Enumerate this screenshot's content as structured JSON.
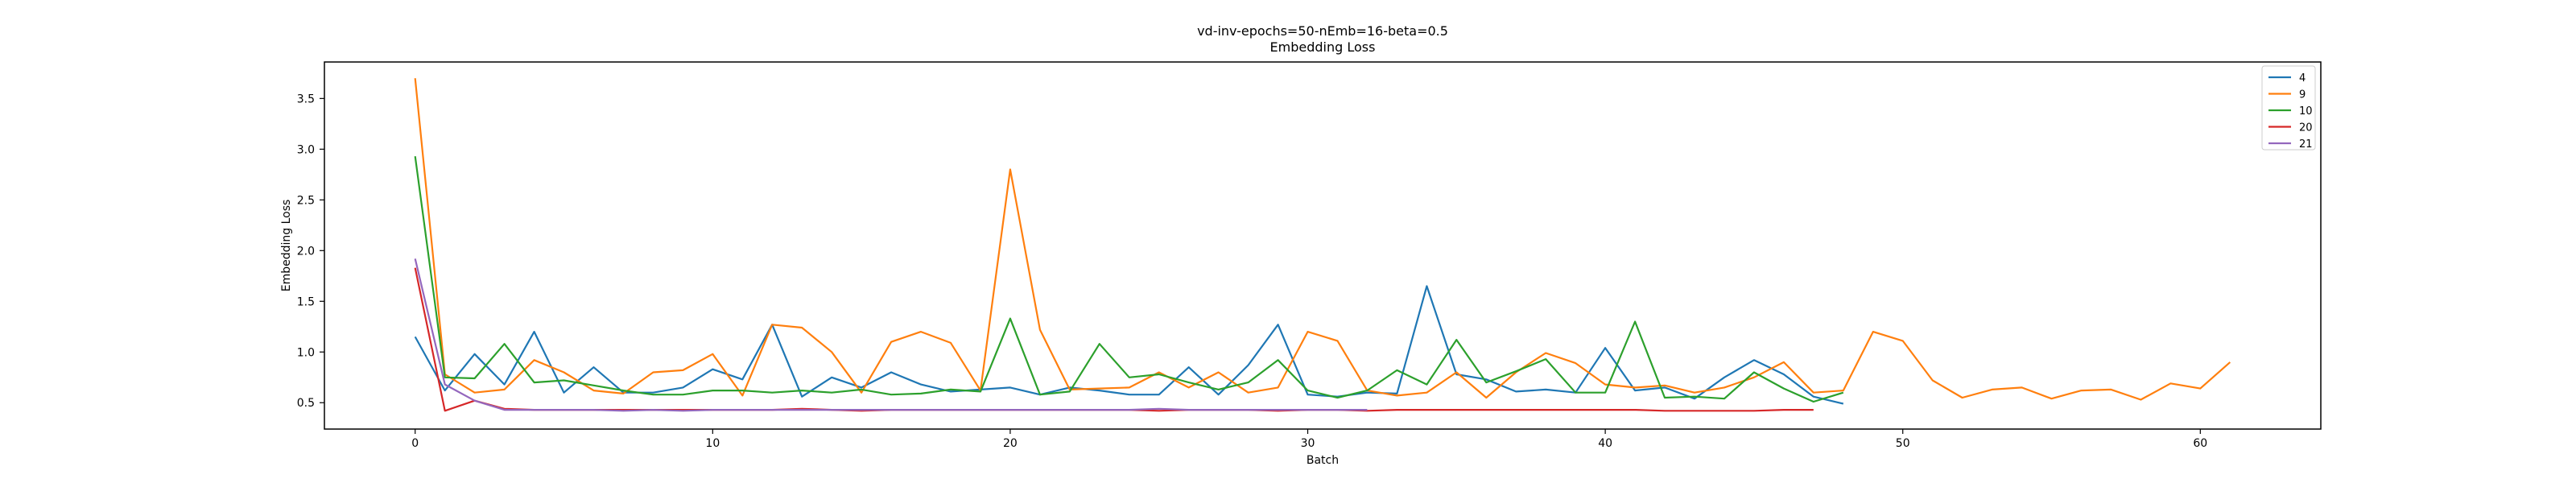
{
  "chart_data": {
    "type": "line",
    "title": "vd-inv-epochs=50-nEmb=16-beta=0.5",
    "subtitle": "Embedding Loss",
    "xlabel": "Batch",
    "ylabel": "Embedding Loss",
    "xlim": [
      -3.05,
      64.05
    ],
    "ylim": [
      0.24,
      3.86
    ],
    "xticks": [
      0,
      10,
      20,
      30,
      40,
      50,
      60
    ],
    "yticks": [
      0.5,
      1.0,
      1.5,
      2.0,
      2.5,
      3.0,
      3.5
    ],
    "ytick_labels": [
      "0.5",
      "1.0",
      "1.5",
      "2.0",
      "2.5",
      "3.0",
      "3.5"
    ],
    "grid": false,
    "legend_position": "top-right",
    "series": [
      {
        "name": "4",
        "color": "#1f77b4",
        "values": [
          1.15,
          0.62,
          0.98,
          0.68,
          1.2,
          0.6,
          0.85,
          0.6,
          0.6,
          0.65,
          0.83,
          0.73,
          1.27,
          0.56,
          0.75,
          0.65,
          0.8,
          0.68,
          0.61,
          0.63,
          0.65,
          0.58,
          0.65,
          0.62,
          0.58,
          0.58,
          0.85,
          0.58,
          0.87,
          1.27,
          0.58,
          0.56,
          0.6,
          0.59,
          1.65,
          0.78,
          0.73,
          0.61,
          0.63,
          0.6,
          1.04,
          0.62,
          0.65,
          0.54,
          0.75,
          0.92,
          0.78,
          0.56,
          0.49
        ]
      },
      {
        "name": "9",
        "color": "#ff7f0e",
        "values": [
          3.7,
          0.78,
          0.6,
          0.63,
          0.92,
          0.8,
          0.62,
          0.59,
          0.8,
          0.82,
          0.98,
          0.57,
          1.27,
          1.24,
          1.0,
          0.6,
          1.1,
          1.2,
          1.09,
          0.62,
          2.8,
          1.22,
          0.63,
          0.64,
          0.65,
          0.8,
          0.65,
          0.8,
          0.6,
          0.65,
          1.2,
          1.11,
          0.62,
          0.57,
          0.6,
          0.8,
          0.55,
          0.8,
          0.99,
          0.89,
          0.68,
          0.65,
          0.67,
          0.6,
          0.65,
          0.75,
          0.9,
          0.6,
          0.62,
          1.2,
          1.11,
          0.72,
          0.55,
          0.63,
          0.65,
          0.54,
          0.62,
          0.63,
          0.53,
          0.69,
          0.64,
          0.9
        ]
      },
      {
        "name": "10",
        "color": "#2ca02c",
        "values": [
          2.93,
          0.75,
          0.74,
          1.08,
          0.7,
          0.72,
          0.67,
          0.62,
          0.58,
          0.58,
          0.62,
          0.62,
          0.6,
          0.62,
          0.6,
          0.63,
          0.58,
          0.59,
          0.63,
          0.61,
          1.33,
          0.58,
          0.61,
          1.08,
          0.75,
          0.78,
          0.7,
          0.63,
          0.7,
          0.92,
          0.62,
          0.55,
          0.62,
          0.82,
          0.68,
          1.12,
          0.7,
          0.81,
          0.93,
          0.6,
          0.6,
          1.3,
          0.55,
          0.56,
          0.54,
          0.8,
          0.64,
          0.51,
          0.6
        ]
      },
      {
        "name": "20",
        "color": "#d62728",
        "values": [
          1.83,
          0.42,
          0.52,
          0.44,
          0.43,
          0.43,
          0.43,
          0.43,
          0.43,
          0.43,
          0.43,
          0.43,
          0.43,
          0.44,
          0.43,
          0.42,
          0.43,
          0.43,
          0.43,
          0.43,
          0.43,
          0.43,
          0.43,
          0.43,
          0.43,
          0.42,
          0.43,
          0.43,
          0.43,
          0.42,
          0.43,
          0.43,
          0.42,
          0.43,
          0.43,
          0.43,
          0.43,
          0.43,
          0.43,
          0.43,
          0.43,
          0.43,
          0.42,
          0.42,
          0.42,
          0.42,
          0.43,
          0.43
        ]
      },
      {
        "name": "21",
        "color": "#9467bd",
        "values": [
          1.92,
          0.68,
          0.52,
          0.43,
          0.43,
          0.43,
          0.43,
          0.42,
          0.43,
          0.42,
          0.43,
          0.43,
          0.43,
          0.43,
          0.43,
          0.43,
          0.43,
          0.43,
          0.43,
          0.43,
          0.43,
          0.43,
          0.43,
          0.43,
          0.43,
          0.44,
          0.43,
          0.43,
          0.43,
          0.43,
          0.43,
          0.43,
          0.43
        ]
      }
    ]
  }
}
